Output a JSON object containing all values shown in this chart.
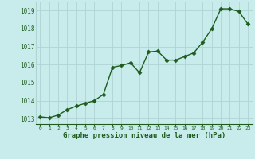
{
  "x": [
    0,
    1,
    2,
    3,
    4,
    5,
    6,
    7,
    8,
    9,
    10,
    11,
    12,
    13,
    14,
    15,
    16,
    17,
    18,
    19,
    20,
    21,
    22,
    23
  ],
  "y": [
    1013.1,
    1013.05,
    1013.2,
    1013.5,
    1013.7,
    1013.85,
    1014.0,
    1014.35,
    1015.85,
    1015.95,
    1016.1,
    1015.55,
    1016.7,
    1016.75,
    1016.25,
    1016.25,
    1016.45,
    1016.65,
    1017.25,
    1018.0,
    1019.1,
    1019.1,
    1018.95,
    1018.25
  ],
  "line_color": "#1e5c1e",
  "marker_color": "#1e5c1e",
  "bg_color": "#c8ecec",
  "grid_color": "#b0d4d4",
  "xlabel": "Graphe pression niveau de la mer (hPa)",
  "xlabel_color": "#1e5c1e",
  "tick_color": "#1e5c1e",
  "ylim": [
    1012.7,
    1019.5
  ],
  "yticks": [
    1013,
    1014,
    1015,
    1016,
    1017,
    1018,
    1019
  ],
  "xticks": [
    0,
    1,
    2,
    3,
    4,
    5,
    6,
    7,
    8,
    9,
    10,
    11,
    12,
    13,
    14,
    15,
    16,
    17,
    18,
    19,
    20,
    21,
    22,
    23
  ]
}
